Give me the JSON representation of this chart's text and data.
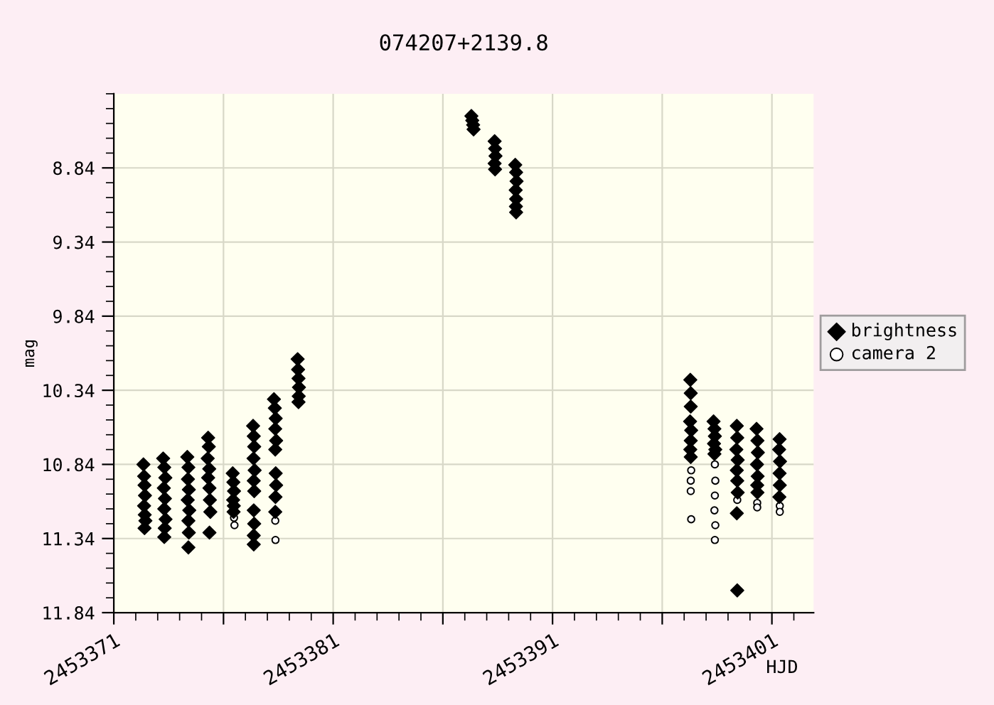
{
  "chart_data": {
    "type": "scatter",
    "title": "074207+2139.8",
    "xlabel": "HJD",
    "ylabel": "mag",
    "xlim": [
      2453371,
      2453402.9
    ],
    "ylim": [
      11.84,
      8.34
    ],
    "xticks": [
      2453371,
      {
        "value": 2453376,
        "label": null
      },
      2453381,
      {
        "value": 2453386,
        "label": null
      },
      2453391,
      {
        "value": 2453396,
        "label": null
      },
      2453401
    ],
    "yticks": [
      8.84,
      9.34,
      9.84,
      10.34,
      10.84,
      11.34,
      11.84
    ],
    "grid": true,
    "legend": "right",
    "series": [
      {
        "name": "brightness",
        "color": "#000000",
        "marker": "diamond",
        "x": [
          2453372.35,
          2453372.38,
          2453372.4,
          2453372.42,
          2453372.38,
          2453372.41,
          2453372.44,
          2453372.4,
          2453373.25,
          2453373.3,
          2453373.35,
          2453373.28,
          2453373.33,
          2453373.3,
          2453373.36,
          2453373.32,
          2453373.3,
          2453374.35,
          2453374.4,
          2453374.38,
          2453374.42,
          2453374.37,
          2453374.44,
          2453374.4,
          2453374.42,
          2453374.4,
          2453375.3,
          2453375.33,
          2453375.28,
          2453375.35,
          2453375.3,
          2453375.36,
          2453375.38,
          2453375.4,
          2453375.36,
          2453376.42,
          2453376.45,
          2453376.48,
          2453376.44,
          2453376.47,
          2453376.46,
          2453377.35,
          2453377.38,
          2453377.4,
          2453377.37,
          2453377.42,
          2453377.38,
          2453377.4,
          2453377.38,
          2453377.4,
          2453377.38,
          2453377.38,
          2453378.3,
          2453378.34,
          2453378.38,
          2453378.36,
          2453378.4,
          2453378.36,
          2453378.38,
          2453378.4,
          2453378.37,
          2453378.36,
          2453379.38,
          2453379.4,
          2453379.42,
          2453379.44,
          2453379.43,
          2453379.42,
          2453387.3,
          2453387.34,
          2453387.38,
          2453387.4,
          2453388.36,
          2453388.38,
          2453388.4,
          2453388.36,
          2453388.38,
          2453389.3,
          2453389.34,
          2453389.36,
          2453389.32,
          2453389.34,
          2453389.33,
          2453389.34,
          2453397.28,
          2453397.3,
          2453397.3,
          2453397.27,
          2453397.32,
          2453397.3,
          2453397.28,
          2453397.3,
          2453398.34,
          2453398.38,
          2453398.4,
          2453398.36,
          2453398.42,
          2453398.38,
          2453399.4,
          2453399.42,
          2453399.38,
          2453399.44,
          2453399.4,
          2453399.42,
          2453399.44,
          2453399.4,
          2453399.42,
          2453400.3,
          2453400.34,
          2453400.36,
          2453400.32,
          2453400.35,
          2453400.33,
          2453400.34,
          2453401.35,
          2453401.33,
          2453401.37,
          2453401.35,
          2453401.36,
          2453401.34
        ],
        "values": [
          10.84,
          10.92,
          10.98,
          11.05,
          11.12,
          11.18,
          11.22,
          11.27,
          10.8,
          10.86,
          10.93,
          11.0,
          11.07,
          11.14,
          11.21,
          11.27,
          11.33,
          10.79,
          10.86,
          10.94,
          11.01,
          11.08,
          11.15,
          11.22,
          11.3,
          11.4,
          10.66,
          10.72,
          10.8,
          10.87,
          10.93,
          11.0,
          11.08,
          11.16,
          11.3,
          10.9,
          10.96,
          11.02,
          11.08,
          11.12,
          11.16,
          10.58,
          10.65,
          10.72,
          10.8,
          10.88,
          10.95,
          11.02,
          11.15,
          11.24,
          11.32,
          11.38,
          10.4,
          10.46,
          10.53,
          10.6,
          10.68,
          10.74,
          10.9,
          10.98,
          11.06,
          11.16,
          10.13,
          10.2,
          10.26,
          10.32,
          10.38,
          10.42,
          8.49,
          8.52,
          8.55,
          8.58,
          8.66,
          8.71,
          8.76,
          8.81,
          8.85,
          8.82,
          8.87,
          8.93,
          8.99,
          9.05,
          9.1,
          9.14,
          10.27,
          10.36,
          10.45,
          10.55,
          10.61,
          10.68,
          10.74,
          10.79,
          10.55,
          10.6,
          10.65,
          10.7,
          10.74,
          10.77,
          10.58,
          10.66,
          10.74,
          10.81,
          10.88,
          10.95,
          11.03,
          11.17,
          11.69,
          10.6,
          10.68,
          10.76,
          10.84,
          10.92,
          10.98,
          11.03,
          10.67,
          10.74,
          10.82,
          10.9,
          10.98,
          11.06
        ]
      },
      {
        "name": "camera 2",
        "color": "#000000",
        "marker": "circle",
        "x": [
          2453376.48,
          2453376.5,
          2453378.36,
          2453378.37,
          2453397.32,
          2453397.3,
          2453397.3,
          2453397.32,
          2453398.4,
          2453398.42,
          2453398.4,
          2453398.38,
          2453398.42,
          2453398.4,
          2453399.42,
          2453400.33,
          2453400.33,
          2453401.36,
          2453401.36
        ],
        "values": [
          11.2,
          11.25,
          11.22,
          11.35,
          10.88,
          10.95,
          11.02,
          11.21,
          10.84,
          10.95,
          11.05,
          11.15,
          11.25,
          11.35,
          11.08,
          11.1,
          11.13,
          11.12,
          11.16
        ]
      }
    ]
  }
}
